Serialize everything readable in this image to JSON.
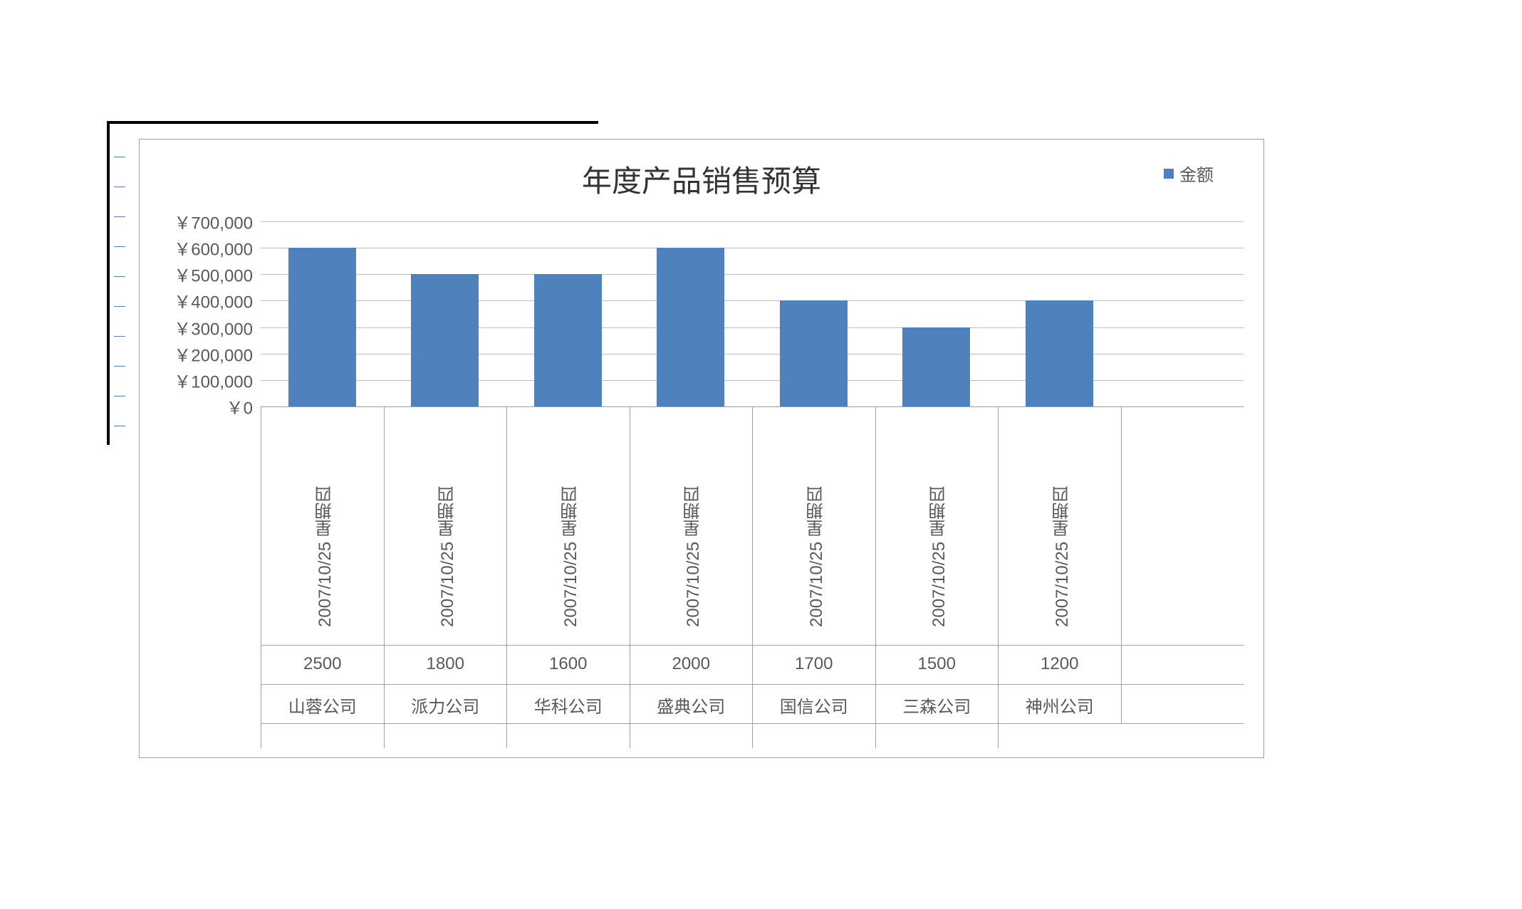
{
  "chart": {
    "type": "bar",
    "title": "年度产品销售预算",
    "title_fontsize": 42,
    "title_color": "#333333",
    "legend": {
      "label": "金额",
      "color": "#4f81bd",
      "fontsize": 24
    },
    "background_color": "#ffffff",
    "border_color": "#a0a0a0",
    "grid_color": "#bfbfbf",
    "bar_color": "#4f81bd",
    "bar_width_ratio": 0.55,
    "y_axis": {
      "min": 0,
      "max": 700000,
      "step": 100000,
      "labels": [
        "￥0",
        "￥100,000",
        "￥200,000",
        "￥300,000",
        "￥400,000",
        "￥500,000",
        "￥600,000",
        "￥700,000"
      ],
      "label_fontsize": 24,
      "label_color": "#595959"
    },
    "categories": [
      {
        "company": "山蓉公司",
        "date": "2007/10/25 星期四",
        "qty": "2500",
        "value": 600000
      },
      {
        "company": "派力公司",
        "date": "2007/10/25 星期四",
        "qty": "1800",
        "value": 500000
      },
      {
        "company": "华科公司",
        "date": "2007/10/25 星期四",
        "qty": "1600",
        "value": 500000
      },
      {
        "company": "盛典公司",
        "date": "2007/10/25 星期四",
        "qty": "2000",
        "value": 600000
      },
      {
        "company": "国信公司",
        "date": "2007/10/25 星期四",
        "qty": "1700",
        "value": 400000
      },
      {
        "company": "三森公司",
        "date": "2007/10/25 星期四",
        "qty": "1500",
        "value": 300000
      },
      {
        "company": "神州公司",
        "date": "2007/10/25 星期四",
        "qty": "1200",
        "value": 400000
      }
    ],
    "x_label_fontsize": 24,
    "x_label_color": "#595959",
    "outer_frame_color": "#000000",
    "inner_tick_color": "#5b7aa8"
  }
}
